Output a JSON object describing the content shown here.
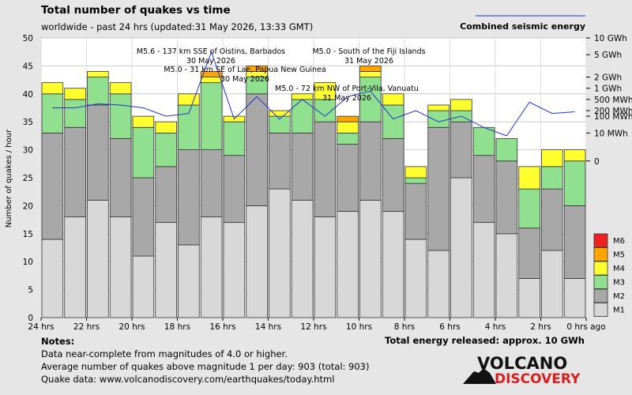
{
  "chart_data": {
    "type": "bar",
    "title": "Total number of quakes vs time",
    "subtitle": "worldwide - past 24 hrs (updated:31 May 2026, 13:33 GMT)",
    "ylabel": "Number of quakes / hour",
    "ylim": [
      0,
      50
    ],
    "y_ticks": [
      "0",
      "5",
      "10",
      "15",
      "20",
      "25",
      "30",
      "35",
      "40",
      "45",
      "50"
    ],
    "x_tick_labels": [
      "24 hrs",
      "22 hrs",
      "20 hrs",
      "18 hrs",
      "16 hrs",
      "14 hrs",
      "12 hrs",
      "10 hrs",
      "8 hrs",
      "6 hrs",
      "4 hrs",
      "2 hrs",
      "0 hrs ago"
    ],
    "legend": [
      "M6",
      "M5",
      "M4",
      "M3",
      "M2",
      "M1"
    ],
    "series_colors": {
      "M1": "#d8d8d8",
      "M2": "#a8a8a8",
      "M3": "#90e090",
      "M4": "#ffff30",
      "M5": "#ffa500",
      "M6": "#ee2222"
    },
    "bars": [
      {
        "M1": 14,
        "M2": 19,
        "M3": 7,
        "M4": 2,
        "M5": 0,
        "M6": 0
      },
      {
        "M1": 18,
        "M2": 16,
        "M3": 5,
        "M4": 2,
        "M5": 0,
        "M6": 0
      },
      {
        "M1": 21,
        "M2": 17,
        "M3": 5,
        "M4": 1,
        "M5": 0,
        "M6": 0
      },
      {
        "M1": 18,
        "M2": 14,
        "M3": 8,
        "M4": 2,
        "M5": 0,
        "M6": 0
      },
      {
        "M1": 11,
        "M2": 14,
        "M3": 9,
        "M4": 2,
        "M5": 0,
        "M6": 0
      },
      {
        "M1": 17,
        "M2": 10,
        "M3": 6,
        "M4": 2,
        "M5": 0,
        "M6": 0
      },
      {
        "M1": 13,
        "M2": 17,
        "M3": 8,
        "M4": 2,
        "M5": 0,
        "M6": 0
      },
      {
        "M1": 18,
        "M2": 12,
        "M3": 12,
        "M4": 1,
        "M5": 1,
        "M6": 0
      },
      {
        "M1": 17,
        "M2": 12,
        "M3": 6,
        "M4": 1,
        "M5": 0,
        "M6": 0
      },
      {
        "M1": 20,
        "M2": 20,
        "M3": 3,
        "M4": 1,
        "M5": 1,
        "M6": 0
      },
      {
        "M1": 23,
        "M2": 10,
        "M3": 3,
        "M4": 1,
        "M5": 0,
        "M6": 0
      },
      {
        "M1": 21,
        "M2": 12,
        "M3": 6,
        "M4": 1,
        "M5": 0,
        "M6": 0
      },
      {
        "M1": 18,
        "M2": 17,
        "M3": 4,
        "M4": 3,
        "M5": 0,
        "M6": 0
      },
      {
        "M1": 19,
        "M2": 12,
        "M3": 2,
        "M4": 2,
        "M5": 1,
        "M6": 0
      },
      {
        "M1": 21,
        "M2": 14,
        "M3": 8,
        "M4": 1,
        "M5": 1,
        "M6": 0
      },
      {
        "M1": 19,
        "M2": 13,
        "M3": 6,
        "M4": 2,
        "M5": 0,
        "M6": 0
      },
      {
        "M1": 14,
        "M2": 10,
        "M3": 1,
        "M4": 2,
        "M5": 0,
        "M6": 0
      },
      {
        "M1": 12,
        "M2": 22,
        "M3": 3,
        "M4": 1,
        "M5": 0,
        "M6": 0
      },
      {
        "M1": 25,
        "M2": 10,
        "M3": 2,
        "M4": 2,
        "M5": 0,
        "M6": 0
      },
      {
        "M1": 17,
        "M2": 12,
        "M3": 5,
        "M4": 0,
        "M5": 0,
        "M6": 0
      },
      {
        "M1": 15,
        "M2": 13,
        "M3": 4,
        "M4": 0,
        "M5": 0,
        "M6": 0
      },
      {
        "M1": 7,
        "M2": 9,
        "M3": 7,
        "M4": 4,
        "M5": 0,
        "M6": 0
      },
      {
        "M1": 12,
        "M2": 11,
        "M3": 4,
        "M4": 3,
        "M5": 0,
        "M6": 0
      },
      {
        "M1": 7,
        "M2": 13,
        "M3": 8,
        "M4": 2,
        "M5": 0,
        "M6": 0
      }
    ],
    "energy": {
      "series_name": "Combined seismic energy",
      "color": "#2233cc",
      "axis_ticks": [
        "10 GWh",
        "5 GWh",
        "2 GWh",
        "1 GWh",
        "500 MWh",
        "200 MWh",
        "100 MWh",
        "10 MWh",
        "0"
      ],
      "axis_tick_counts": [
        50,
        47,
        43,
        41,
        39,
        37,
        36,
        33,
        28
      ],
      "line_counts": [
        37.5,
        37.5,
        38.2,
        38,
        37.5,
        36,
        36.5,
        47.5,
        35.5,
        39.5,
        35.5,
        39,
        36,
        39.5,
        40.5,
        35.5,
        37,
        35,
        36,
        34,
        32.5,
        38.5,
        36.5,
        36.8
      ]
    },
    "annotations": [
      {
        "text": "M5.6 - 137 km SSE of Oistins, Barbados",
        "date": "30 May 2026",
        "bar": 7
      },
      {
        "text": "M5.0 - 31 km SE of Lae, Papua New Guinea",
        "date": "30 May 2026",
        "bar": 9
      },
      {
        "text": "M5.0 - South of the Fiji Islands",
        "date": "31 May 2026",
        "bar": 14
      },
      {
        "text": "M5.0 - 72 km NW of Port-Vila, Vanuatu",
        "date": "31 May 2026",
        "bar": 13
      }
    ]
  },
  "notes": {
    "heading": "Notes:",
    "line1": "Data near-complete from magnitudes of 4.0 or higher.",
    "line2": "Average number of quakes above magnitude 1 per day: 903 (total: 903)",
    "line3": "Quake data: www.volcanodiscovery.com/earthquakes/today.html"
  },
  "energy_total": "Total energy released: approx. 10 GWh",
  "logo": {
    "line1": "VOLCANO",
    "line2": "DISCOVERY"
  }
}
